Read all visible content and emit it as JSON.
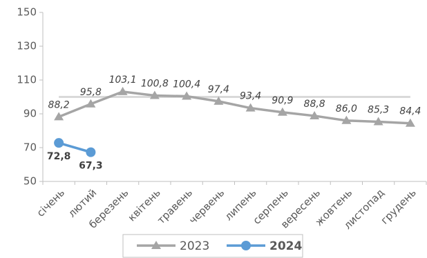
{
  "chart_data": {
    "type": "line",
    "categories": [
      "січень",
      "лютий",
      "березень",
      "квітень",
      "травень",
      "червень",
      "липень",
      "серпень",
      "вересень",
      "жовтень",
      "листопад",
      "грудень"
    ],
    "series": [
      {
        "name": "2023",
        "color": "#a5a5a5",
        "marker": "triangle",
        "values": [
          88.2,
          95.8,
          103.1,
          100.8,
          100.4,
          97.4,
          93.4,
          90.9,
          88.8,
          86.0,
          85.3,
          84.4
        ],
        "value_labels": [
          "88,2",
          "95,8",
          "103,1",
          "100,8",
          "100,4",
          "97,4",
          "93,4",
          "90,9",
          "88,8",
          "86,0",
          "85,3",
          "84,4"
        ]
      },
      {
        "name": "2024",
        "color": "#5b9bd5",
        "marker": "circle",
        "values": [
          72.8,
          67.3,
          null,
          null,
          null,
          null,
          null,
          null,
          null,
          null,
          null,
          null
        ],
        "value_labels": [
          "72,8",
          "67,3",
          null,
          null,
          null,
          null,
          null,
          null,
          null,
          null,
          null,
          null
        ]
      }
    ],
    "reference_line": {
      "value": 100,
      "color": "#d9d9d9"
    },
    "ylim": [
      50,
      150
    ],
    "yticks": [
      50,
      70,
      90,
      110,
      130,
      150
    ]
  }
}
